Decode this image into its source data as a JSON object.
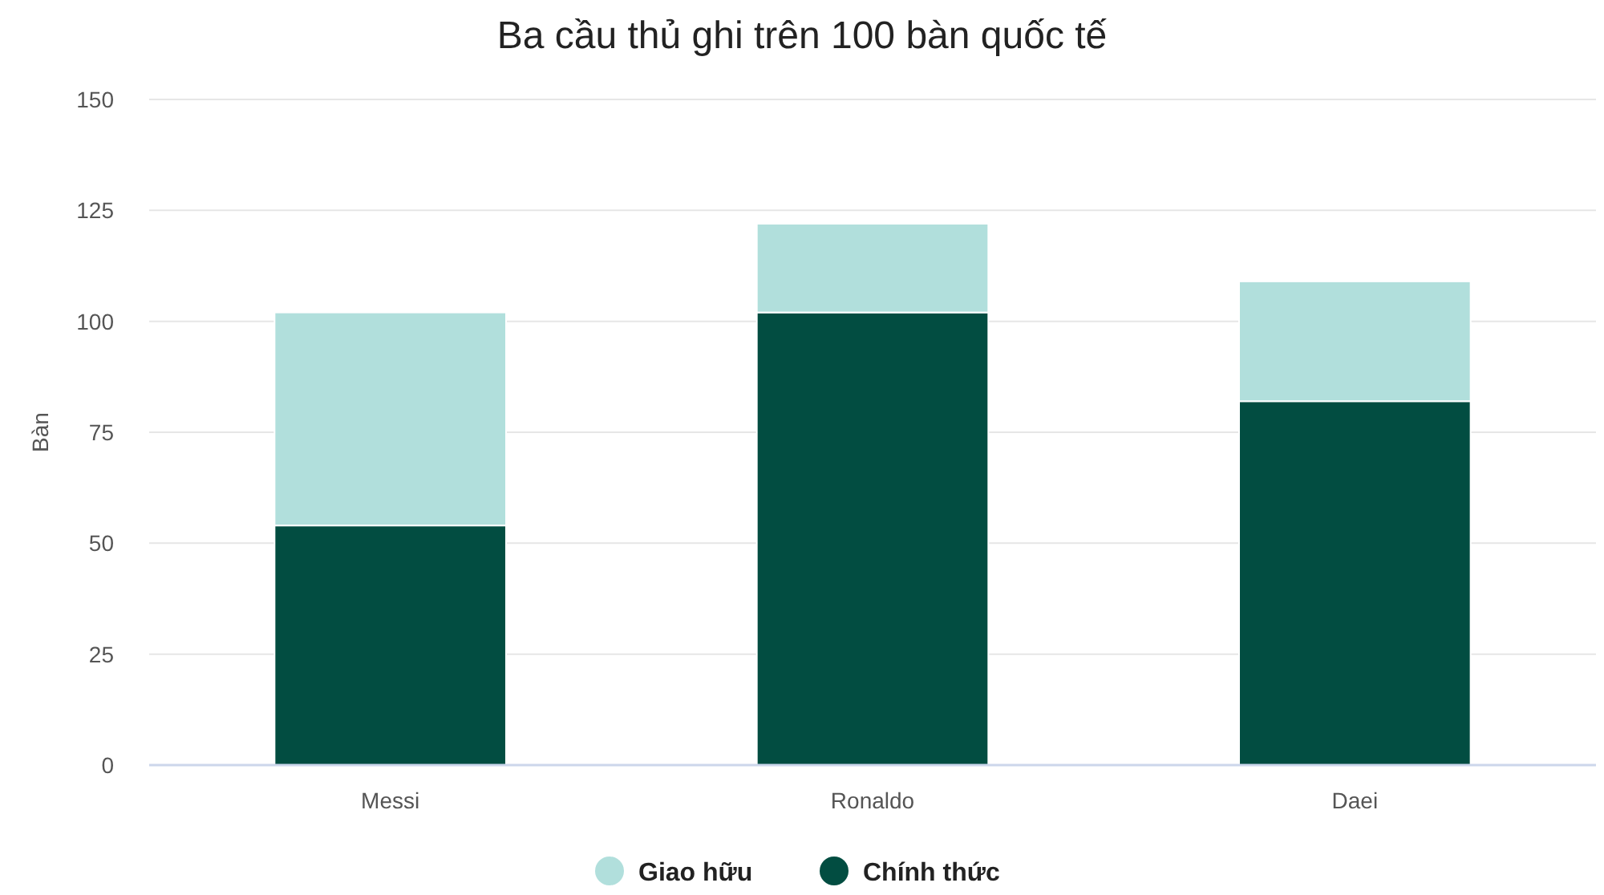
{
  "chart_data": {
    "type": "bar",
    "title": "Ba cầu thủ ghi trên 100 bàn quốc tế",
    "ylabel": "Bàn",
    "categories": [
      "Messi",
      "Ronaldo",
      "Daei"
    ],
    "stacked": true,
    "series": [
      {
        "name": "Chính thức",
        "color": "#024d41",
        "values": [
          54,
          102,
          82
        ]
      },
      {
        "name": "Giao hữu",
        "color": "#b1dfdc",
        "values": [
          48,
          20,
          27
        ]
      }
    ],
    "ylim": [
      0,
      150
    ],
    "yticks": [
      0,
      25,
      50,
      75,
      100,
      125,
      150
    ],
    "grid": "y",
    "legend": "bottom"
  }
}
